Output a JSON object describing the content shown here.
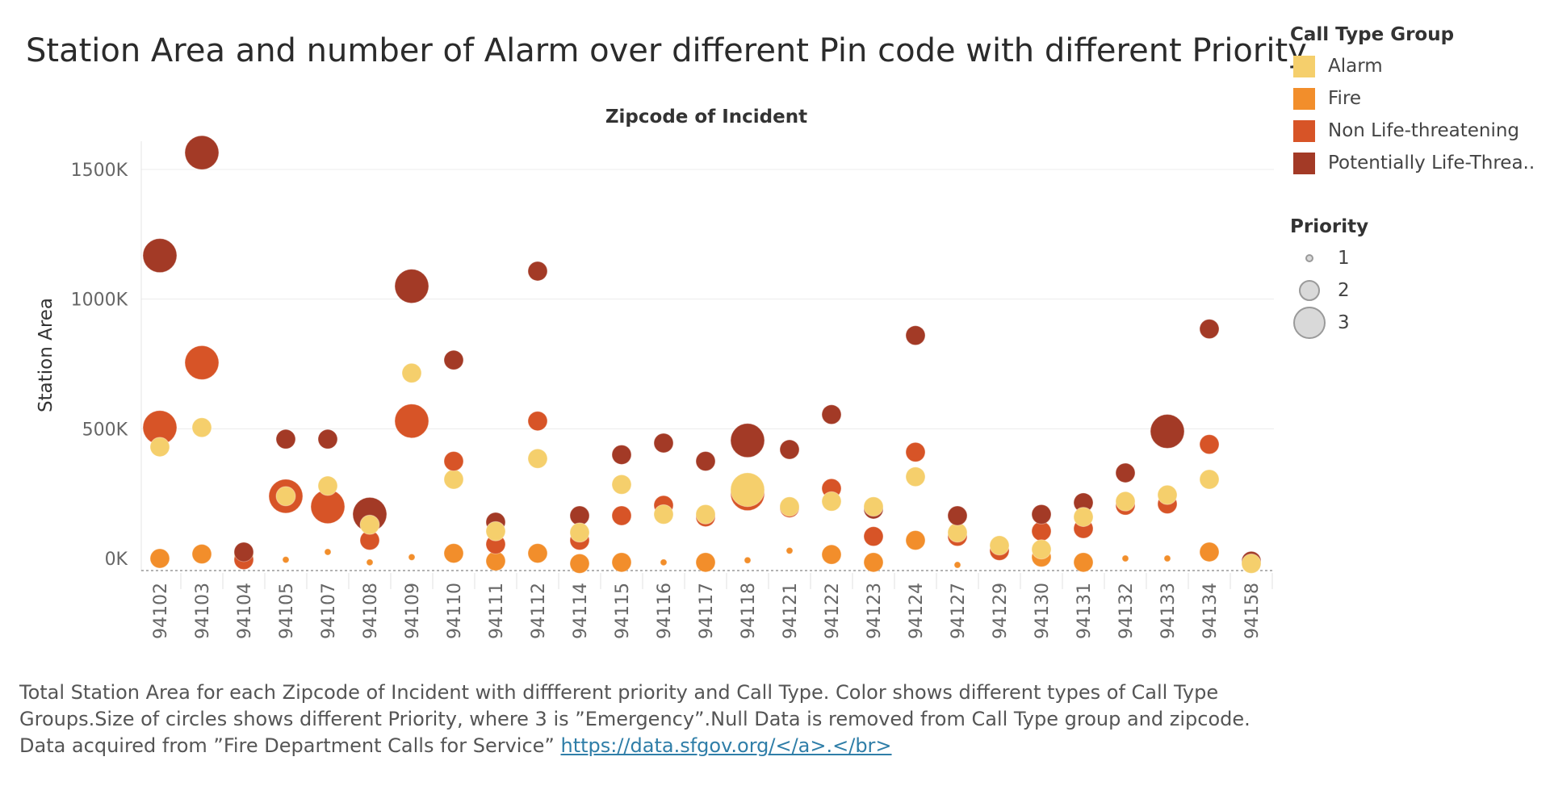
{
  "title": "Station Area and number of Alarm over different Pin code with different Priority",
  "chart_data": {
    "type": "scatter",
    "title": "Station Area and number of Alarm over different Pin code with different Priority",
    "column_header": "Zipcode of Incident",
    "ylabel": "Station Area",
    "ylim": [
      -30,
      1600
    ],
    "y_ticks": [
      {
        "value": 0,
        "label": "0K"
      },
      {
        "value": 500,
        "label": "500K"
      },
      {
        "value": 1000,
        "label": "1000K"
      },
      {
        "value": 1500,
        "label": "1500K"
      }
    ],
    "categories": [
      "94102",
      "94103",
      "94104",
      "94105",
      "94107",
      "94108",
      "94109",
      "94110",
      "94111",
      "94112",
      "94114",
      "94115",
      "94116",
      "94117",
      "94118",
      "94121",
      "94122",
      "94123",
      "94124",
      "94127",
      "94129",
      "94130",
      "94131",
      "94132",
      "94133",
      "94134",
      "94158"
    ],
    "series_colors": {
      "Alarm": "#f5cf6c",
      "Fire": "#f28e2b",
      "Non Life-threatening": "#d75427",
      "Potentially Life-Threa..": "#a33a26"
    },
    "points": [
      {
        "zip": "94102",
        "group": "Alarm",
        "priority": 2,
        "y": 430
      },
      {
        "zip": "94102",
        "group": "Fire",
        "priority": 2,
        "y": 0
      },
      {
        "zip": "94102",
        "group": "Non Life-threatening",
        "priority": 3,
        "y": 505
      },
      {
        "zip": "94102",
        "group": "Potentially Life-Threa..",
        "priority": 3,
        "y": 1168
      },
      {
        "zip": "94103",
        "group": "Alarm",
        "priority": 2,
        "y": 505
      },
      {
        "zip": "94103",
        "group": "Fire",
        "priority": 2,
        "y": 17
      },
      {
        "zip": "94103",
        "group": "Non Life-threatening",
        "priority": 3,
        "y": 755
      },
      {
        "zip": "94103",
        "group": "Potentially Life-Threa..",
        "priority": 3,
        "y": 1565
      },
      {
        "zip": "94104",
        "group": "Alarm",
        "priority": 2,
        "y": 12
      },
      {
        "zip": "94104",
        "group": "Non Life-threatening",
        "priority": 2,
        "y": -5
      },
      {
        "zip": "94104",
        "group": "Potentially Life-Threa..",
        "priority": 2,
        "y": 25
      },
      {
        "zip": "94105",
        "group": "Fire",
        "priority": 1,
        "y": -5
      },
      {
        "zip": "94105",
        "group": "Non Life-threatening",
        "priority": 3,
        "y": 240
      },
      {
        "zip": "94105",
        "group": "Alarm",
        "priority": 2,
        "y": 240
      },
      {
        "zip": "94105",
        "group": "Potentially Life-Threa..",
        "priority": 2,
        "y": 460
      },
      {
        "zip": "94107",
        "group": "Fire",
        "priority": 1,
        "y": 25
      },
      {
        "zip": "94107",
        "group": "Non Life-threatening",
        "priority": 3,
        "y": 200
      },
      {
        "zip": "94107",
        "group": "Alarm",
        "priority": 2,
        "y": 280
      },
      {
        "zip": "94107",
        "group": "Potentially Life-Threa..",
        "priority": 2,
        "y": 460
      },
      {
        "zip": "94108",
        "group": "Fire",
        "priority": 1,
        "y": -15
      },
      {
        "zip": "94108",
        "group": "Non Life-threatening",
        "priority": 2,
        "y": 70
      },
      {
        "zip": "94108",
        "group": "Potentially Life-Threa..",
        "priority": 3,
        "y": 170
      },
      {
        "zip": "94108",
        "group": "Alarm",
        "priority": 2,
        "y": 130
      },
      {
        "zip": "94109",
        "group": "Fire",
        "priority": 1,
        "y": 5
      },
      {
        "zip": "94109",
        "group": "Non Life-threatening",
        "priority": 3,
        "y": 530
      },
      {
        "zip": "94109",
        "group": "Alarm",
        "priority": 2,
        "y": 715
      },
      {
        "zip": "94109",
        "group": "Potentially Life-Threa..",
        "priority": 3,
        "y": 1050
      },
      {
        "zip": "94110",
        "group": "Fire",
        "priority": 2,
        "y": 20
      },
      {
        "zip": "94110",
        "group": "Alarm",
        "priority": 2,
        "y": 305
      },
      {
        "zip": "94110",
        "group": "Non Life-threatening",
        "priority": 2,
        "y": 375
      },
      {
        "zip": "94110",
        "group": "Potentially Life-Threa..",
        "priority": 2,
        "y": 765
      },
      {
        "zip": "94111",
        "group": "Fire",
        "priority": 2,
        "y": -10
      },
      {
        "zip": "94111",
        "group": "Non Life-threatening",
        "priority": 2,
        "y": 55
      },
      {
        "zip": "94111",
        "group": "Potentially Life-Threa..",
        "priority": 2,
        "y": 140
      },
      {
        "zip": "94111",
        "group": "Alarm",
        "priority": 2,
        "y": 105
      },
      {
        "zip": "94112",
        "group": "Fire",
        "priority": 2,
        "y": 20
      },
      {
        "zip": "94112",
        "group": "Alarm",
        "priority": 2,
        "y": 385
      },
      {
        "zip": "94112",
        "group": "Non Life-threatening",
        "priority": 2,
        "y": 530
      },
      {
        "zip": "94112",
        "group": "Potentially Life-Threa..",
        "priority": 2,
        "y": 1108
      },
      {
        "zip": "94114",
        "group": "Fire",
        "priority": 2,
        "y": -20
      },
      {
        "zip": "94114",
        "group": "Non Life-threatening",
        "priority": 2,
        "y": 70
      },
      {
        "zip": "94114",
        "group": "Potentially Life-Threa..",
        "priority": 2,
        "y": 165
      },
      {
        "zip": "94114",
        "group": "Alarm",
        "priority": 2,
        "y": 100
      },
      {
        "zip": "94115",
        "group": "Fire",
        "priority": 2,
        "y": -15
      },
      {
        "zip": "94115",
        "group": "Non Life-threatening",
        "priority": 2,
        "y": 165
      },
      {
        "zip": "94115",
        "group": "Alarm",
        "priority": 2,
        "y": 285
      },
      {
        "zip": "94115",
        "group": "Potentially Life-Threa..",
        "priority": 2,
        "y": 400
      },
      {
        "zip": "94116",
        "group": "Fire",
        "priority": 1,
        "y": -15
      },
      {
        "zip": "94116",
        "group": "Non Life-threatening",
        "priority": 2,
        "y": 205
      },
      {
        "zip": "94116",
        "group": "Alarm",
        "priority": 2,
        "y": 170
      },
      {
        "zip": "94116",
        "group": "Potentially Life-Threa..",
        "priority": 2,
        "y": 445
      },
      {
        "zip": "94117",
        "group": "Fire",
        "priority": 2,
        "y": -15
      },
      {
        "zip": "94117",
        "group": "Non Life-threatening",
        "priority": 2,
        "y": 160
      },
      {
        "zip": "94117",
        "group": "Alarm",
        "priority": 2,
        "y": 170
      },
      {
        "zip": "94117",
        "group": "Potentially Life-Threa..",
        "priority": 2,
        "y": 375
      },
      {
        "zip": "94118",
        "group": "Fire",
        "priority": 1,
        "y": -7
      },
      {
        "zip": "94118",
        "group": "Non Life-threatening",
        "priority": 3,
        "y": 250
      },
      {
        "zip": "94118",
        "group": "Alarm",
        "priority": 3,
        "y": 265
      },
      {
        "zip": "94118",
        "group": "Potentially Life-Threa..",
        "priority": 3,
        "y": 455
      },
      {
        "zip": "94121",
        "group": "Fire",
        "priority": 1,
        "y": 30
      },
      {
        "zip": "94121",
        "group": "Non Life-threatening",
        "priority": 2,
        "y": 195
      },
      {
        "zip": "94121",
        "group": "Alarm",
        "priority": 2,
        "y": 200
      },
      {
        "zip": "94121",
        "group": "Potentially Life-Threa..",
        "priority": 2,
        "y": 420
      },
      {
        "zip": "94122",
        "group": "Fire",
        "priority": 2,
        "y": 15
      },
      {
        "zip": "94122",
        "group": "Non Life-threatening",
        "priority": 2,
        "y": 270
      },
      {
        "zip": "94122",
        "group": "Alarm",
        "priority": 2,
        "y": 220
      },
      {
        "zip": "94122",
        "group": "Potentially Life-Threa..",
        "priority": 2,
        "y": 555
      },
      {
        "zip": "94123",
        "group": "Fire",
        "priority": 2,
        "y": -15
      },
      {
        "zip": "94123",
        "group": "Non Life-threatening",
        "priority": 2,
        "y": 85
      },
      {
        "zip": "94123",
        "group": "Potentially Life-Threa..",
        "priority": 2,
        "y": 190
      },
      {
        "zip": "94123",
        "group": "Alarm",
        "priority": 2,
        "y": 200
      },
      {
        "zip": "94124",
        "group": "Fire",
        "priority": 2,
        "y": 70
      },
      {
        "zip": "94124",
        "group": "Alarm",
        "priority": 2,
        "y": 315
      },
      {
        "zip": "94124",
        "group": "Non Life-threatening",
        "priority": 2,
        "y": 410
      },
      {
        "zip": "94124",
        "group": "Potentially Life-Threa..",
        "priority": 2,
        "y": 860
      },
      {
        "zip": "94127",
        "group": "Fire",
        "priority": 1,
        "y": -25
      },
      {
        "zip": "94127",
        "group": "Non Life-threatening",
        "priority": 2,
        "y": 85
      },
      {
        "zip": "94127",
        "group": "Alarm",
        "priority": 2,
        "y": 100
      },
      {
        "zip": "94127",
        "group": "Potentially Life-Threa..",
        "priority": 2,
        "y": 165
      },
      {
        "zip": "94129",
        "group": "Non Life-threatening",
        "priority": 2,
        "y": 30
      },
      {
        "zip": "94129",
        "group": "Alarm",
        "priority": 2,
        "y": 50
      },
      {
        "zip": "94130",
        "group": "Fire",
        "priority": 2,
        "y": 5
      },
      {
        "zip": "94130",
        "group": "Non Life-threatening",
        "priority": 2,
        "y": 105
      },
      {
        "zip": "94130",
        "group": "Potentially Life-Threa..",
        "priority": 2,
        "y": 170
      },
      {
        "zip": "94130",
        "group": "Alarm",
        "priority": 2,
        "y": 35
      },
      {
        "zip": "94131",
        "group": "Fire",
        "priority": 2,
        "y": -15
      },
      {
        "zip": "94131",
        "group": "Non Life-threatening",
        "priority": 2,
        "y": 115
      },
      {
        "zip": "94131",
        "group": "Potentially Life-Threa..",
        "priority": 2,
        "y": 215
      },
      {
        "zip": "94131",
        "group": "Alarm",
        "priority": 2,
        "y": 160
      },
      {
        "zip": "94132",
        "group": "Fire",
        "priority": 1,
        "y": 0
      },
      {
        "zip": "94132",
        "group": "Non Life-threatening",
        "priority": 2,
        "y": 205
      },
      {
        "zip": "94132",
        "group": "Alarm",
        "priority": 2,
        "y": 220
      },
      {
        "zip": "94132",
        "group": "Potentially Life-Threa..",
        "priority": 2,
        "y": 330
      },
      {
        "zip": "94133",
        "group": "Fire",
        "priority": 1,
        "y": 0
      },
      {
        "zip": "94133",
        "group": "Non Life-threatening",
        "priority": 2,
        "y": 210
      },
      {
        "zip": "94133",
        "group": "Alarm",
        "priority": 2,
        "y": 245
      },
      {
        "zip": "94133",
        "group": "Potentially Life-Threa..",
        "priority": 3,
        "y": 490
      },
      {
        "zip": "94134",
        "group": "Fire",
        "priority": 2,
        "y": 25
      },
      {
        "zip": "94134",
        "group": "Alarm",
        "priority": 2,
        "y": 305
      },
      {
        "zip": "94134",
        "group": "Non Life-threatening",
        "priority": 2,
        "y": 440
      },
      {
        "zip": "94134",
        "group": "Potentially Life-Threa..",
        "priority": 2,
        "y": 885
      },
      {
        "zip": "94158",
        "group": "Potentially Life-Threa..",
        "priority": 2,
        "y": -10
      },
      {
        "zip": "94158",
        "group": "Alarm",
        "priority": 2,
        "y": -20
      }
    ]
  },
  "legend": {
    "color_title": "Call Type Group",
    "color_items": [
      {
        "label": "Alarm",
        "color": "#f5cf6c"
      },
      {
        "label": "Fire",
        "color": "#f28e2b"
      },
      {
        "label": "Non Life-threatening",
        "color": "#d75427"
      },
      {
        "label": "Potentially Life-Threa..",
        "color": "#a33a26"
      }
    ],
    "size_title": "Priority",
    "size_items": [
      {
        "label": "1",
        "priority": 1
      },
      {
        "label": "2",
        "priority": 2
      },
      {
        "label": "3",
        "priority": 3
      }
    ]
  },
  "caption": {
    "line1": "Total Station Area for each Zipcode of Incident with diffferent priority and Call Type.  Color shows different types of Call Type Groups.Size of circles shows different Priority, where 3 is ”Emergency”.Null Data is removed from Call Type group and zipcode.",
    "line2_prefix": "Data acquired from ”Fire Department Calls for Service” ",
    "link_text": "https://data.sfgov.org/</a>.</br>"
  }
}
